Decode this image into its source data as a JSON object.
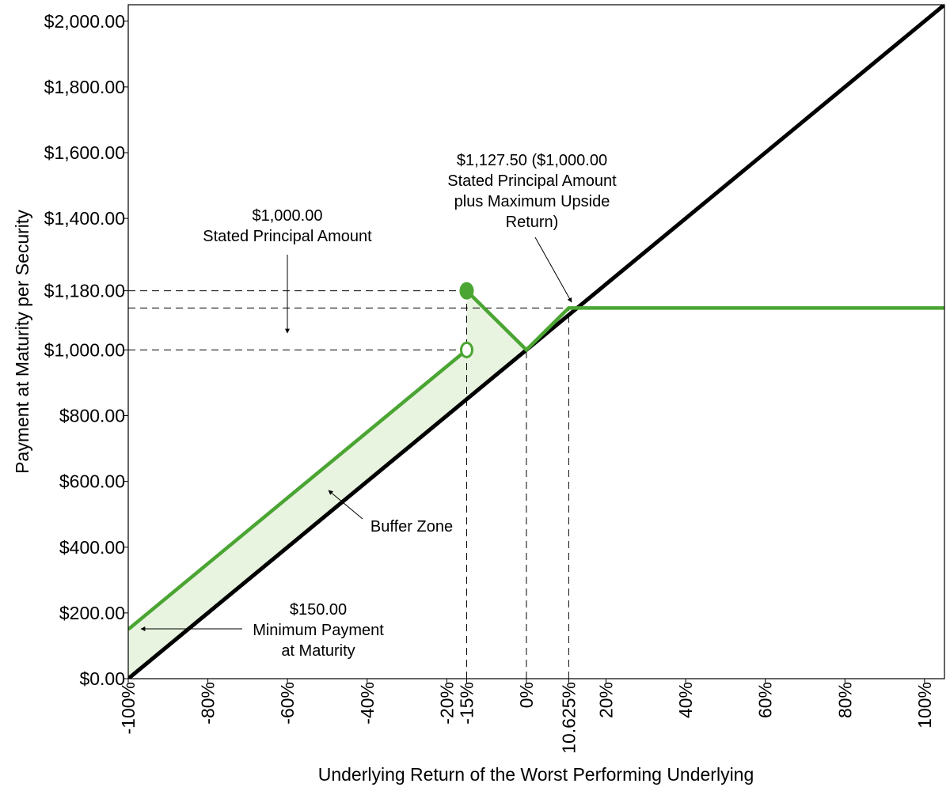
{
  "chart_data": {
    "type": "line",
    "title": "",
    "xlabel": "Underlying Return of the Worst Performing Underlying",
    "ylabel": "Payment at Maturity per Security",
    "xlim": [
      -100,
      105
    ],
    "ylim": [
      0,
      2050
    ],
    "grid": false,
    "y_ticks": [
      {
        "value": 0,
        "label": "$0.00"
      },
      {
        "value": 200,
        "label": "$200.00"
      },
      {
        "value": 400,
        "label": "$400.00"
      },
      {
        "value": 600,
        "label": "$600.00"
      },
      {
        "value": 800,
        "label": "$800.00"
      },
      {
        "value": 1000,
        "label": "$1,000.00"
      },
      {
        "value": 1180,
        "label": "$1,180.00"
      },
      {
        "value": 1400,
        "label": "$1,400.00"
      },
      {
        "value": 1600,
        "label": "$1,600.00"
      },
      {
        "value": 1800,
        "label": "$1,800.00"
      },
      {
        "value": 2000,
        "label": "$2,000.00"
      }
    ],
    "x_ticks": [
      {
        "value": -100,
        "label": "-100%"
      },
      {
        "value": -80,
        "label": "-80%"
      },
      {
        "value": -60,
        "label": "-60%"
      },
      {
        "value": -40,
        "label": "-40%"
      },
      {
        "value": -20,
        "label": "-20%"
      },
      {
        "value": -15,
        "label": "-15%"
      },
      {
        "value": 0,
        "label": "0%"
      },
      {
        "value": 10.625,
        "label": "10.625%"
      },
      {
        "value": 20,
        "label": "20%"
      },
      {
        "value": 40,
        "label": "40%"
      },
      {
        "value": 60,
        "label": "60%"
      },
      {
        "value": 80,
        "label": "80%"
      },
      {
        "value": 100,
        "label": "100%"
      }
    ],
    "series": [
      {
        "name": "",
        "color": "#000000",
        "x": [
          -100,
          105
        ],
        "y": [
          0,
          2050
        ]
      },
      {
        "name": "",
        "color": "#4aa532",
        "segments": [
          {
            "x": [
              -100,
              -15
            ],
            "y": [
              150,
              1000
            ]
          },
          {
            "x": [
              -15,
              0,
              10.625,
              105
            ],
            "y": [
              1180,
              1000,
              1127.5,
              1127.5
            ]
          }
        ]
      }
    ],
    "markers": [
      {
        "x": -15,
        "y": 1180,
        "style": "filled",
        "color": "#4aa532"
      },
      {
        "x": -15,
        "y": 1000,
        "style": "open",
        "color": "#4aa532"
      }
    ],
    "shaded_region": {
      "color": "#e8f3e0",
      "points": [
        [
          -100,
          0
        ],
        [
          -100,
          150
        ],
        [
          -15,
          1000
        ],
        [
          -15,
          1180
        ],
        [
          0,
          1000
        ]
      ]
    },
    "reference_lines": {
      "horizontal": [
        {
          "y": 1180,
          "x_from": -100,
          "x_to": -15
        },
        {
          "y": 1127.5,
          "x_from": -100,
          "x_to": 105
        },
        {
          "y": 1000,
          "x_from": -100,
          "x_to": -15
        }
      ],
      "vertical": [
        {
          "x": -15,
          "y_from": 0,
          "y_to": 1180
        },
        {
          "x": 0,
          "y_from": 0,
          "y_to": 1000
        },
        {
          "x": 10.625,
          "y_from": 0,
          "y_to": 1127.5
        }
      ]
    },
    "annotations": {
      "principal": {
        "lines": [
          "$1,000.00",
          "Stated Principal Amount"
        ],
        "arrow_to": {
          "x": -60,
          "y": 1050
        }
      },
      "max_return": {
        "lines": [
          "$1,127.50 ($1,000.00",
          "Stated Principal Amount",
          "plus Maximum Upside",
          "Return)"
        ],
        "arrow_to": {
          "x": 11.5,
          "y": 1135
        }
      },
      "buffer": {
        "lines": [
          "Buffer Zone"
        ],
        "arrow_to": {
          "x": -50,
          "y": 575
        }
      },
      "minimum": {
        "lines": [
          "$150.00",
          "Minimum Payment",
          "at Maturity"
        ],
        "arrow_to": {
          "x": -97,
          "y": 150
        }
      }
    }
  }
}
